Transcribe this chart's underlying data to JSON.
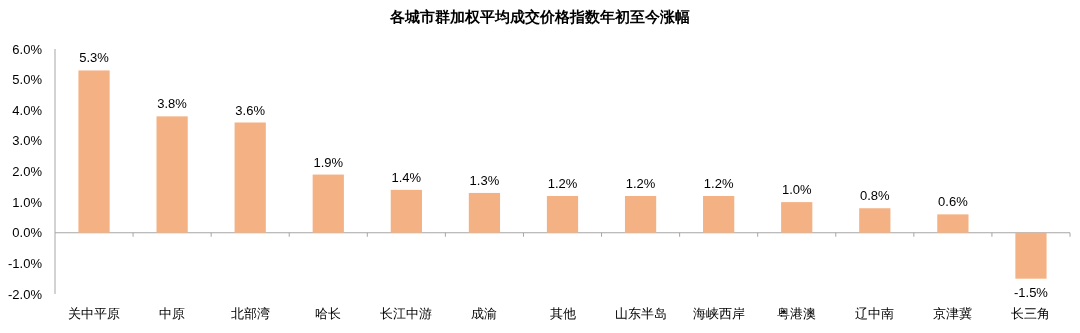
{
  "chart_data": {
    "type": "bar",
    "title": "各城市群加权平均成交价格指数年初至今涨幅",
    "categories": [
      "关中平原",
      "中原",
      "北部湾",
      "哈长",
      "长江中游",
      "成渝",
      "其他",
      "山东半岛",
      "海峡西岸",
      "粤港澳",
      "辽中南",
      "京津冀",
      "长三角"
    ],
    "values": [
      5.3,
      3.8,
      3.6,
      1.9,
      1.4,
      1.3,
      1.2,
      1.2,
      1.2,
      1.0,
      0.8,
      0.6,
      -1.5
    ],
    "value_labels": [
      "5.3%",
      "3.8%",
      "3.6%",
      "1.9%",
      "1.4%",
      "1.3%",
      "1.2%",
      "1.2%",
      "1.2%",
      "1.0%",
      "0.8%",
      "0.6%",
      "-1.5%"
    ],
    "color": "#f4b183",
    "ylim": [
      -2,
      6
    ],
    "yticks": [
      {
        "value": -2,
        "label": "-2.0%"
      },
      {
        "value": -1,
        "label": "-1.0%"
      },
      {
        "value": 0,
        "label": "0.0%"
      },
      {
        "value": 1,
        "label": "1.0%"
      },
      {
        "value": 2,
        "label": "2.0%"
      },
      {
        "value": 3,
        "label": "3.0%"
      },
      {
        "value": 4,
        "label": "4.0%"
      },
      {
        "value": 5,
        "label": "5.0%"
      },
      {
        "value": 6,
        "label": "6.0%"
      }
    ],
    "orientation": "vertical"
  }
}
